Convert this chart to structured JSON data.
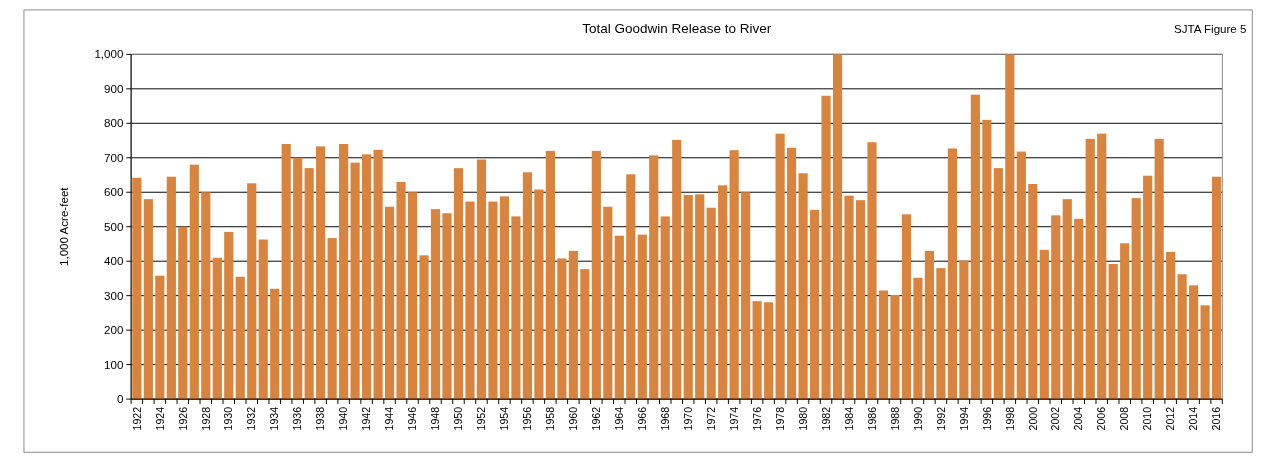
{
  "chart_data": {
    "type": "bar",
    "title": "Total Goodwin Release to River",
    "ylabel": "1,000 Acre-feet",
    "annotations": [
      "SJTA Figure 5"
    ],
    "categories": [
      "1922",
      null,
      "1924",
      null,
      "1926",
      null,
      "1928",
      null,
      "1930",
      null,
      "1932",
      null,
      "1934",
      null,
      "1936",
      null,
      "1938",
      null,
      "1940",
      null,
      "1942",
      null,
      "1944",
      null,
      "1946",
      null,
      "1948",
      null,
      "1950",
      null,
      "1952",
      null,
      "1954",
      null,
      "1956",
      null,
      "1958",
      null,
      "1960",
      null,
      "1962",
      null,
      "1964",
      null,
      "1966",
      null,
      "1968",
      null,
      "1970",
      null,
      "1972",
      null,
      "1974",
      null,
      "1976",
      null,
      "1978",
      null,
      "1980",
      null,
      "1982",
      null,
      "1984",
      null,
      "1986",
      null,
      "1988",
      null,
      "1990",
      null,
      "1992",
      null,
      "1994",
      null,
      "1996",
      null,
      "1998",
      null,
      "2000",
      null,
      "2002",
      null,
      "2004",
      null,
      "2006",
      null,
      "2008",
      null,
      "2010",
      null,
      "2012",
      null,
      "2014",
      null,
      "2016"
    ],
    "values": [
      642,
      580,
      358,
      645,
      500,
      680,
      600,
      410,
      485,
      355,
      626,
      463,
      320,
      740,
      700,
      670,
      733,
      467,
      740,
      686,
      710,
      723,
      558,
      630,
      600,
      417,
      551,
      539,
      670,
      573,
      695,
      573,
      588,
      530,
      658,
      608,
      720,
      408,
      430,
      377,
      720,
      558,
      474,
      652,
      477,
      707,
      530,
      752,
      592,
      594,
      555,
      620,
      722,
      600,
      284,
      281,
      770,
      729,
      655,
      549,
      880,
      1000,
      590,
      577,
      745,
      315,
      302,
      536,
      352,
      430,
      380,
      727,
      402,
      883,
      810,
      670,
      1000,
      718,
      624,
      433,
      533,
      580,
      523,
      755,
      770,
      392,
      452,
      583,
      648,
      755,
      427,
      362,
      330,
      272,
      645
    ],
    "color": "#d9843e",
    "ylim": [
      0,
      1000
    ],
    "yticks": [
      0,
      100,
      200,
      300,
      400,
      500,
      600,
      700,
      800,
      900,
      {
        "value": 1000,
        "label": "1,000"
      }
    ],
    "grid": "y"
  }
}
